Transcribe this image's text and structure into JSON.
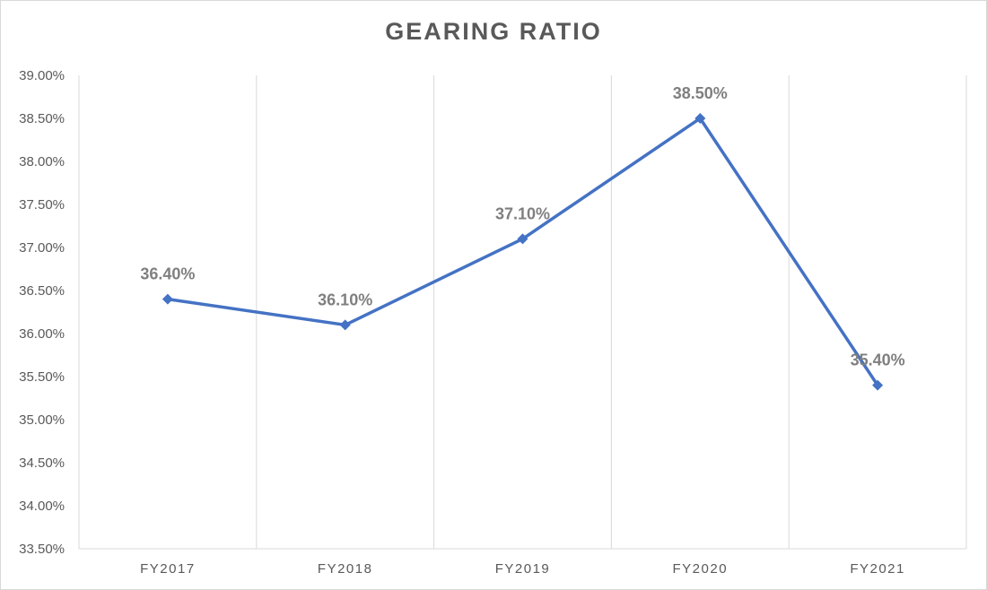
{
  "chart_data": {
    "type": "line",
    "title": "GEARING RATIO",
    "xlabel": "",
    "ylabel": "",
    "categories": [
      "FY2017",
      "FY2018",
      "FY2019",
      "FY2020",
      "FY2021"
    ],
    "series": [
      {
        "values": [
          36.4,
          36.1,
          37.1,
          38.5,
          35.4
        ],
        "data_labels": [
          "36.40%",
          "36.10%",
          "37.10%",
          "38.50%",
          "35.40%"
        ],
        "color": "#4472c4",
        "marker": "diamond"
      }
    ],
    "ylim": [
      33.5,
      39.0
    ],
    "y_ticks": [
      {
        "value": 33.5,
        "label": "33.50%"
      },
      {
        "value": 34.0,
        "label": "34.00%"
      },
      {
        "value": 34.5,
        "label": "34.50%"
      },
      {
        "value": 35.0,
        "label": "35.00%"
      },
      {
        "value": 35.5,
        "label": "35.50%"
      },
      {
        "value": 36.0,
        "label": "36.00%"
      },
      {
        "value": 36.5,
        "label": "36.50%"
      },
      {
        "value": 37.0,
        "label": "37.00%"
      },
      {
        "value": 37.5,
        "label": "37.50%"
      },
      {
        "value": 38.0,
        "label": "38.00%"
      },
      {
        "value": 38.5,
        "label": "38.50%"
      },
      {
        "value": 39.0,
        "label": "39.00%"
      }
    ],
    "grid": "vertical",
    "legend": "none",
    "colors": {
      "line": "#4472c4",
      "grid": "#d9d9d9",
      "axis_text": "#595959",
      "data_label": "#7f7f7f"
    }
  }
}
